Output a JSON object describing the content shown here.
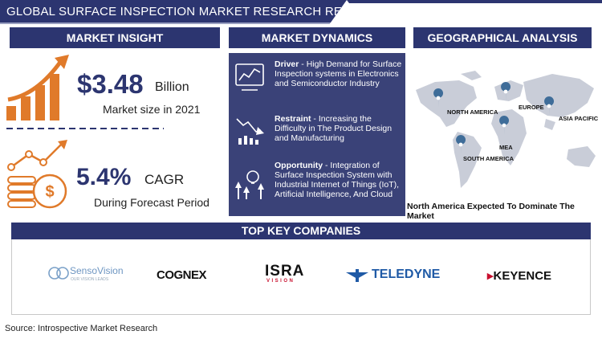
{
  "header": {
    "title": "GLOBAL SURFACE INSPECTION MARKET RESEARCH REPORT"
  },
  "sections": {
    "market_insight": "MARKET INSIGHT",
    "market_dynamics": "MARKET DYNAMICS",
    "geographical_analysis": "GEOGRAPHICAL ANALYSIS",
    "top_key_companies": "TOP KEY COMPANIES"
  },
  "insight": {
    "market_value": "$3.48",
    "market_unit": "Billion",
    "market_caption": "Market size in 2021",
    "cagr_value": "5.4%",
    "cagr_unit": "CAGR",
    "cagr_caption": "During Forecast Period"
  },
  "dynamics": [
    {
      "label": "Driver",
      "text": " - High Demand for Surface Inspection systems in Electronics and Semiconductor Industry",
      "icon": "chart-monitor-icon"
    },
    {
      "label": "Restraint",
      "text": " - Increasing the Difficulty in The Product Design and Manufacturing",
      "icon": "declining-chart-icon"
    },
    {
      "label": "Opportunity",
      "text": " - Integration of Surface Inspection System with Industrial Internet of Things (IoT), Artificial Intelligence, And Cloud",
      "icon": "growth-bulb-icon"
    }
  ],
  "geo": {
    "regions": [
      "NORTH AMERICA",
      "EUROPE",
      "ASIA PACIFIC",
      "MEA",
      "SOUTH AMERICA"
    ],
    "footer": "North America Expected To Dominate The Market"
  },
  "companies": [
    "SensoVision",
    "COGNEX",
    "ISRA",
    "TELEDYNE",
    "KEYENCE"
  ],
  "company_sublabels": {
    "sensovision": "OUR VISION LEADS",
    "isra": "VISION"
  },
  "source": "Source: Introspective Market Research",
  "colors": {
    "navy": "#2c3570",
    "orange": "#e07a2a",
    "map_gray": "#c9cdd8",
    "pin_blue": "#3f6d99"
  }
}
